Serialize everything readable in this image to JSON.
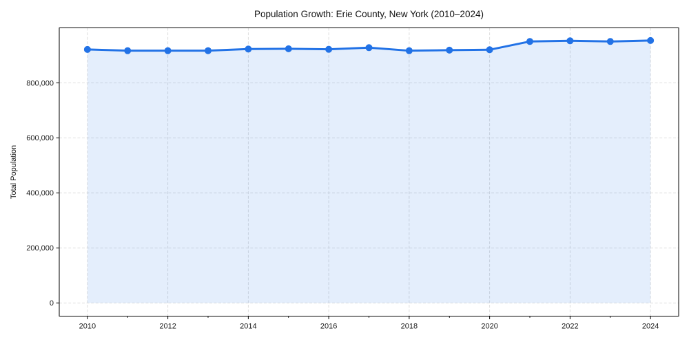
{
  "chart_data": {
    "type": "area",
    "title": "Population Growth: Erie County, New York (2010–2024)",
    "xlabel": "",
    "ylabel": "Total Population",
    "x": [
      2010,
      2011,
      2012,
      2013,
      2014,
      2015,
      2016,
      2017,
      2018,
      2019,
      2020,
      2021,
      2022,
      2023,
      2024
    ],
    "series": [
      {
        "name": "Total Population",
        "values": [
          921500,
          917000,
          917000,
          917000,
          923000,
          924000,
          922000,
          928000,
          917000,
          919000,
          920500,
          950500,
          953000,
          950500,
          954000
        ]
      }
    ],
    "xlim": [
      2009.3,
      2024.7
    ],
    "ylim": [
      -48000,
      1000000
    ],
    "xticks_major": [
      2010,
      2012,
      2014,
      2016,
      2018,
      2020,
      2022,
      2024
    ],
    "xtick_labels": [
      "2010",
      "2012",
      "2014",
      "2016",
      "2018",
      "2020",
      "2022",
      "2024"
    ],
    "xticks_minor": [
      2011,
      2013,
      2015,
      2017,
      2019,
      2021,
      2023
    ],
    "yticks": [
      0,
      200000,
      400000,
      600000,
      800000
    ],
    "ytick_labels": [
      "0",
      "200,000",
      "400,000",
      "600,000",
      "800,000"
    ],
    "grid": "dashed",
    "legend": false,
    "marker": "circle",
    "colors": {
      "line": "#2272e6",
      "fill": "rgba(34, 114, 230, 0.12)",
      "grid": "#d9d9d9",
      "spine": "#000000",
      "text": "#1a1a1a",
      "background": "#ffffff"
    }
  }
}
